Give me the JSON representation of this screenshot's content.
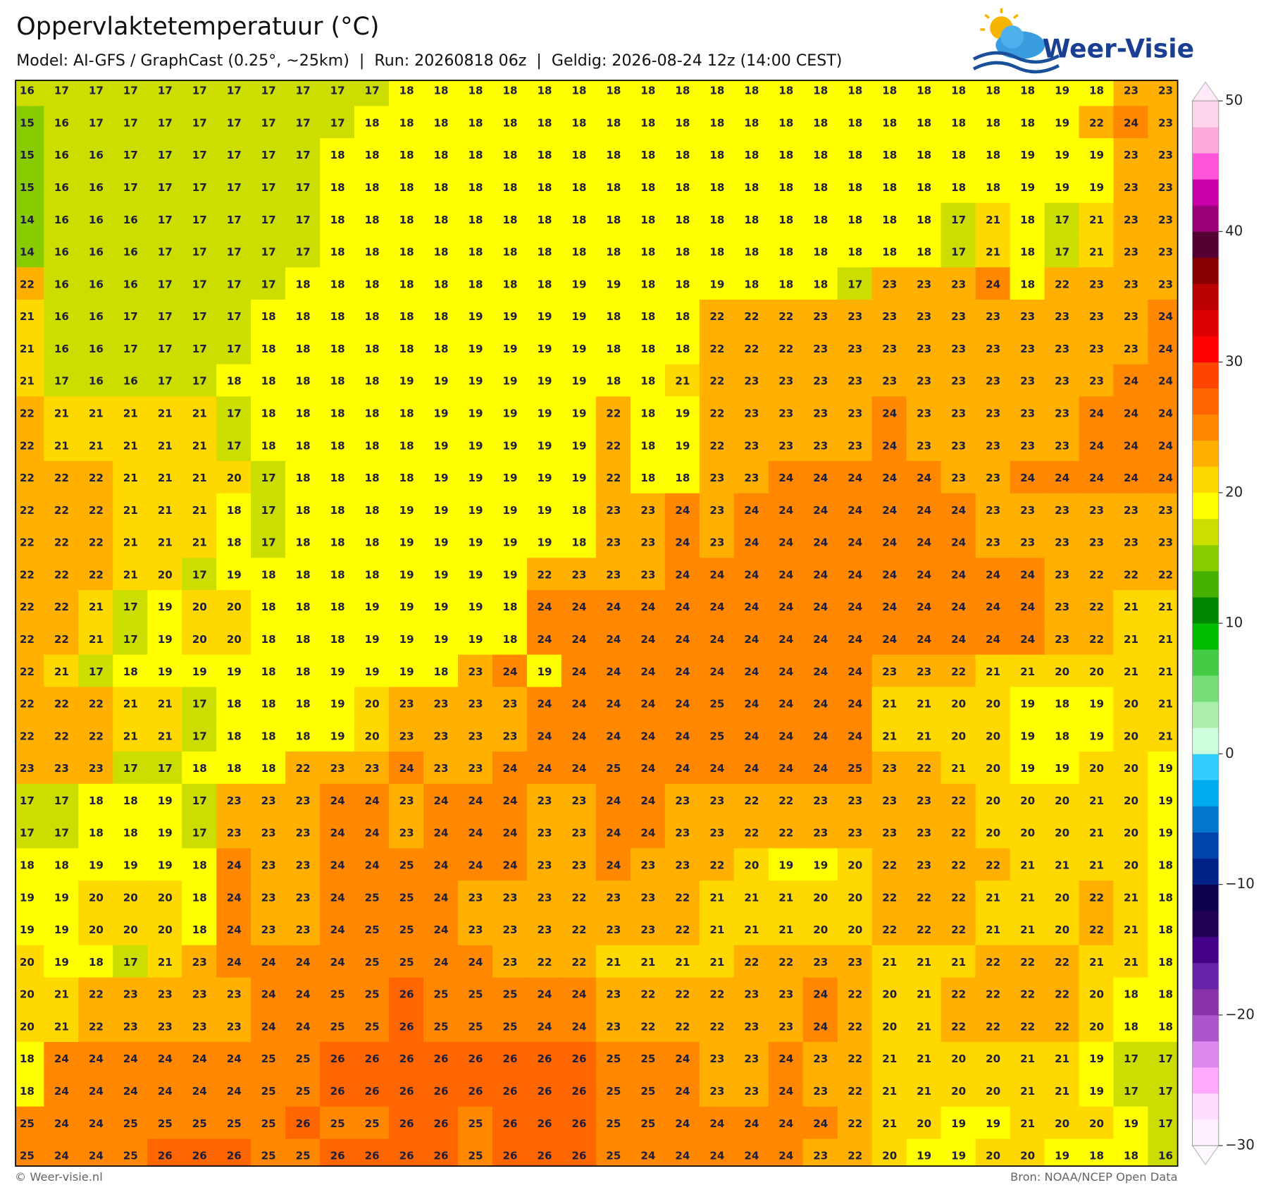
{
  "header": {
    "title": "Oppervlaktetemperatuur (°C)",
    "subtitle": "Model: AI-GFS / GraphCast (0.25°, ~25km)  |  Run: 20260818 06z  |  Geldig: 2026-08-24 12z (14:00 CEST)",
    "logo": "Weer-Visie"
  },
  "map": {
    "grid": [
      [
        16,
        17,
        17,
        17,
        17,
        17,
        17,
        17,
        17,
        17,
        17,
        18,
        18,
        18,
        18,
        18,
        18,
        18,
        18,
        18,
        18,
        18,
        18,
        18,
        18,
        18,
        18,
        18,
        18,
        18,
        19,
        18,
        23,
        23
      ],
      [
        15,
        16,
        17,
        17,
        17,
        17,
        17,
        17,
        17,
        17,
        18,
        18,
        18,
        18,
        18,
        18,
        18,
        18,
        18,
        18,
        18,
        18,
        18,
        18,
        18,
        18,
        18,
        18,
        18,
        18,
        19,
        22,
        24,
        23
      ],
      [
        15,
        16,
        16,
        17,
        17,
        17,
        17,
        17,
        17,
        18,
        18,
        18,
        18,
        18,
        18,
        18,
        18,
        18,
        18,
        18,
        18,
        18,
        18,
        18,
        18,
        18,
        18,
        18,
        18,
        19,
        19,
        19,
        23,
        23
      ],
      [
        15,
        16,
        16,
        17,
        17,
        17,
        17,
        17,
        17,
        18,
        18,
        18,
        18,
        18,
        18,
        18,
        18,
        18,
        18,
        18,
        18,
        18,
        18,
        18,
        18,
        18,
        18,
        18,
        18,
        19,
        19,
        19,
        23,
        23
      ],
      [
        14,
        16,
        16,
        16,
        17,
        17,
        17,
        17,
        17,
        18,
        18,
        18,
        18,
        18,
        18,
        18,
        18,
        18,
        18,
        18,
        18,
        18,
        18,
        18,
        18,
        18,
        18,
        17,
        21,
        18,
        17,
        21,
        23,
        23
      ],
      [
        14,
        16,
        16,
        16,
        17,
        17,
        17,
        17,
        17,
        18,
        18,
        18,
        18,
        18,
        18,
        18,
        18,
        18,
        18,
        18,
        18,
        18,
        18,
        18,
        18,
        18,
        18,
        17,
        21,
        18,
        17,
        21,
        23,
        23
      ],
      [
        22,
        16,
        16,
        16,
        17,
        17,
        17,
        17,
        18,
        18,
        18,
        18,
        18,
        18,
        18,
        18,
        19,
        19,
        18,
        18,
        19,
        18,
        18,
        18,
        17,
        23,
        23,
        23,
        24,
        18,
        22,
        23,
        23,
        23
      ],
      [
        21,
        16,
        16,
        17,
        17,
        17,
        17,
        18,
        18,
        18,
        18,
        18,
        18,
        19,
        19,
        19,
        19,
        18,
        18,
        18,
        22,
        22,
        22,
        23,
        23,
        23,
        23,
        23,
        23,
        23,
        23,
        23,
        23,
        24
      ],
      [
        21,
        16,
        16,
        17,
        17,
        17,
        17,
        18,
        18,
        18,
        18,
        18,
        18,
        19,
        19,
        19,
        19,
        18,
        18,
        18,
        22,
        22,
        22,
        23,
        23,
        23,
        23,
        23,
        23,
        23,
        23,
        23,
        23,
        24
      ],
      [
        21,
        17,
        16,
        16,
        17,
        17,
        18,
        18,
        18,
        18,
        18,
        19,
        19,
        19,
        19,
        19,
        19,
        18,
        18,
        21,
        22,
        23,
        23,
        23,
        23,
        23,
        23,
        23,
        23,
        23,
        23,
        23,
        24,
        24
      ],
      [
        22,
        21,
        21,
        21,
        21,
        21,
        17,
        18,
        18,
        18,
        18,
        18,
        19,
        19,
        19,
        19,
        19,
        22,
        18,
        19,
        22,
        23,
        23,
        23,
        23,
        24,
        23,
        23,
        23,
        23,
        23,
        24,
        24,
        24
      ],
      [
        22,
        21,
        21,
        21,
        21,
        21,
        17,
        18,
        18,
        18,
        18,
        18,
        19,
        19,
        19,
        19,
        19,
        22,
        18,
        19,
        22,
        23,
        23,
        23,
        23,
        24,
        23,
        23,
        23,
        23,
        23,
        24,
        24,
        24
      ],
      [
        22,
        22,
        22,
        21,
        21,
        21,
        20,
        17,
        18,
        18,
        18,
        18,
        19,
        19,
        19,
        19,
        19,
        22,
        18,
        18,
        23,
        23,
        24,
        24,
        24,
        24,
        24,
        23,
        23,
        24,
        24,
        24,
        24,
        24
      ],
      [
        22,
        22,
        22,
        21,
        21,
        21,
        18,
        17,
        18,
        18,
        18,
        19,
        19,
        19,
        19,
        19,
        18,
        23,
        23,
        24,
        23,
        24,
        24,
        24,
        24,
        24,
        24,
        24,
        23,
        23,
        23,
        23,
        23,
        23
      ],
      [
        22,
        22,
        22,
        21,
        21,
        21,
        18,
        17,
        18,
        18,
        18,
        19,
        19,
        19,
        19,
        19,
        18,
        23,
        23,
        24,
        23,
        24,
        24,
        24,
        24,
        24,
        24,
        24,
        23,
        23,
        23,
        23,
        23,
        23
      ],
      [
        22,
        22,
        22,
        21,
        20,
        17,
        19,
        18,
        18,
        18,
        18,
        19,
        19,
        19,
        19,
        22,
        23,
        23,
        23,
        24,
        24,
        24,
        24,
        24,
        24,
        24,
        24,
        24,
        24,
        24,
        23,
        22,
        22,
        22
      ],
      [
        22,
        22,
        21,
        17,
        19,
        20,
        20,
        18,
        18,
        18,
        19,
        19,
        19,
        19,
        18,
        24,
        24,
        24,
        24,
        24,
        24,
        24,
        24,
        24,
        24,
        24,
        24,
        24,
        24,
        24,
        23,
        22,
        21,
        21
      ],
      [
        22,
        22,
        21,
        17,
        19,
        20,
        20,
        18,
        18,
        18,
        19,
        19,
        19,
        19,
        18,
        24,
        24,
        24,
        24,
        24,
        24,
        24,
        24,
        24,
        24,
        24,
        24,
        24,
        24,
        24,
        23,
        22,
        21,
        21
      ],
      [
        22,
        21,
        17,
        18,
        19,
        19,
        19,
        18,
        18,
        19,
        19,
        19,
        18,
        23,
        24,
        19,
        24,
        24,
        24,
        24,
        24,
        24,
        24,
        24,
        24,
        23,
        23,
        22,
        21,
        21,
        20,
        20,
        21,
        21
      ],
      [
        22,
        22,
        22,
        21,
        21,
        17,
        18,
        18,
        18,
        19,
        20,
        23,
        23,
        23,
        23,
        24,
        24,
        24,
        24,
        24,
        25,
        24,
        24,
        24,
        24,
        21,
        21,
        20,
        20,
        19,
        18,
        19,
        20,
        21
      ],
      [
        22,
        22,
        22,
        21,
        21,
        17,
        18,
        18,
        18,
        19,
        20,
        23,
        23,
        23,
        23,
        24,
        24,
        24,
        24,
        24,
        25,
        24,
        24,
        24,
        24,
        21,
        21,
        20,
        20,
        19,
        18,
        19,
        20,
        21
      ],
      [
        23,
        23,
        23,
        17,
        17,
        18,
        18,
        18,
        22,
        23,
        23,
        24,
        23,
        23,
        24,
        24,
        24,
        25,
        24,
        24,
        24,
        24,
        24,
        24,
        25,
        23,
        22,
        21,
        20,
        19,
        19,
        20,
        20,
        19
      ],
      [
        17,
        17,
        18,
        18,
        19,
        17,
        23,
        23,
        23,
        24,
        24,
        23,
        24,
        24,
        24,
        23,
        23,
        24,
        24,
        23,
        23,
        22,
        22,
        23,
        23,
        23,
        23,
        22,
        20,
        20,
        20,
        21,
        20,
        19
      ],
      [
        17,
        17,
        18,
        18,
        19,
        17,
        23,
        23,
        23,
        24,
        24,
        23,
        24,
        24,
        24,
        23,
        23,
        24,
        24,
        23,
        23,
        22,
        22,
        23,
        23,
        23,
        23,
        22,
        20,
        20,
        20,
        21,
        20,
        19
      ],
      [
        18,
        18,
        19,
        19,
        19,
        18,
        24,
        23,
        23,
        24,
        24,
        25,
        24,
        24,
        24,
        23,
        23,
        24,
        23,
        23,
        22,
        20,
        19,
        19,
        20,
        22,
        23,
        22,
        22,
        21,
        21,
        21,
        20,
        18
      ],
      [
        19,
        19,
        20,
        20,
        20,
        18,
        24,
        23,
        23,
        24,
        25,
        25,
        24,
        23,
        23,
        23,
        22,
        23,
        23,
        22,
        21,
        21,
        21,
        20,
        20,
        22,
        22,
        22,
        21,
        21,
        20,
        22,
        21,
        18
      ],
      [
        19,
        19,
        20,
        20,
        20,
        18,
        24,
        23,
        23,
        24,
        25,
        25,
        24,
        23,
        23,
        23,
        22,
        23,
        23,
        22,
        21,
        21,
        21,
        20,
        20,
        22,
        22,
        22,
        21,
        21,
        20,
        22,
        21,
        18
      ],
      [
        20,
        19,
        18,
        17,
        21,
        23,
        24,
        24,
        24,
        24,
        25,
        25,
        24,
        24,
        23,
        22,
        22,
        21,
        21,
        21,
        21,
        22,
        22,
        23,
        23,
        21,
        21,
        21,
        22,
        22,
        22,
        21,
        21,
        18
      ],
      [
        20,
        21,
        22,
        23,
        23,
        23,
        23,
        24,
        24,
        25,
        25,
        26,
        25,
        25,
        25,
        24,
        24,
        23,
        22,
        22,
        22,
        23,
        23,
        24,
        22,
        20,
        21,
        22,
        22,
        22,
        22,
        20,
        18,
        18
      ],
      [
        20,
        21,
        22,
        23,
        23,
        23,
        23,
        24,
        24,
        25,
        25,
        26,
        25,
        25,
        25,
        24,
        24,
        23,
        22,
        22,
        22,
        23,
        23,
        24,
        22,
        20,
        21,
        22,
        22,
        22,
        22,
        20,
        18,
        18
      ],
      [
        18,
        24,
        24,
        24,
        24,
        24,
        24,
        25,
        25,
        26,
        26,
        26,
        26,
        26,
        26,
        26,
        26,
        25,
        25,
        24,
        23,
        23,
        24,
        23,
        22,
        21,
        21,
        20,
        20,
        21,
        21,
        19,
        17,
        17
      ],
      [
        18,
        24,
        24,
        24,
        24,
        24,
        24,
        25,
        25,
        26,
        26,
        26,
        26,
        26,
        26,
        26,
        26,
        25,
        25,
        24,
        23,
        23,
        24,
        23,
        22,
        21,
        21,
        20,
        20,
        21,
        21,
        19,
        17,
        17
      ],
      [
        25,
        24,
        24,
        25,
        25,
        25,
        25,
        25,
        26,
        25,
        25,
        26,
        26,
        25,
        26,
        26,
        26,
        25,
        25,
        24,
        24,
        24,
        24,
        24,
        22,
        21,
        20,
        19,
        19,
        21,
        20,
        20,
        19,
        17
      ],
      [
        25,
        24,
        24,
        25,
        26,
        26,
        26,
        25,
        25,
        26,
        26,
        26,
        26,
        25,
        26,
        26,
        26,
        25,
        24,
        24,
        24,
        24,
        24,
        23,
        22,
        20,
        19,
        19,
        20,
        20,
        19,
        18,
        18,
        16
      ]
    ]
  },
  "colorbar": {
    "ticks": [
      {
        "value": -30,
        "label": "−30"
      },
      {
        "value": -20,
        "label": "−20"
      },
      {
        "value": -10,
        "label": "−10"
      },
      0,
      10,
      20,
      30,
      40,
      50
    ],
    "colors": [
      "#fff0ff",
      "#ffddff",
      "#ffaaff",
      "#dd88ee",
      "#aa55cc",
      "#8833aa",
      "#6622aa",
      "#440088",
      "#220055",
      "#100050",
      "#002288",
      "#0044aa",
      "#0077cc",
      "#00aaee",
      "#33ccff",
      "#ccffdd",
      "#aaeeaa",
      "#77dd77",
      "#44cc44",
      "#00bb00",
      "#008800",
      "#44b000",
      "#88cc00",
      "#ccdd00",
      "#ffff00",
      "#ffd800",
      "#ffb000",
      "#ff8800",
      "#ff6600",
      "#ff4400",
      "#ff0000",
      "#dd0000",
      "#bb0000",
      "#880000",
      "#550033",
      "#990077",
      "#cc00aa",
      "#ff55dd",
      "#ffaadd",
      "#ffd5ee"
    ]
  },
  "footer": {
    "left": "© Weer-visie.nl",
    "right": "Bron: NOAA/NCEP Open Data"
  }
}
